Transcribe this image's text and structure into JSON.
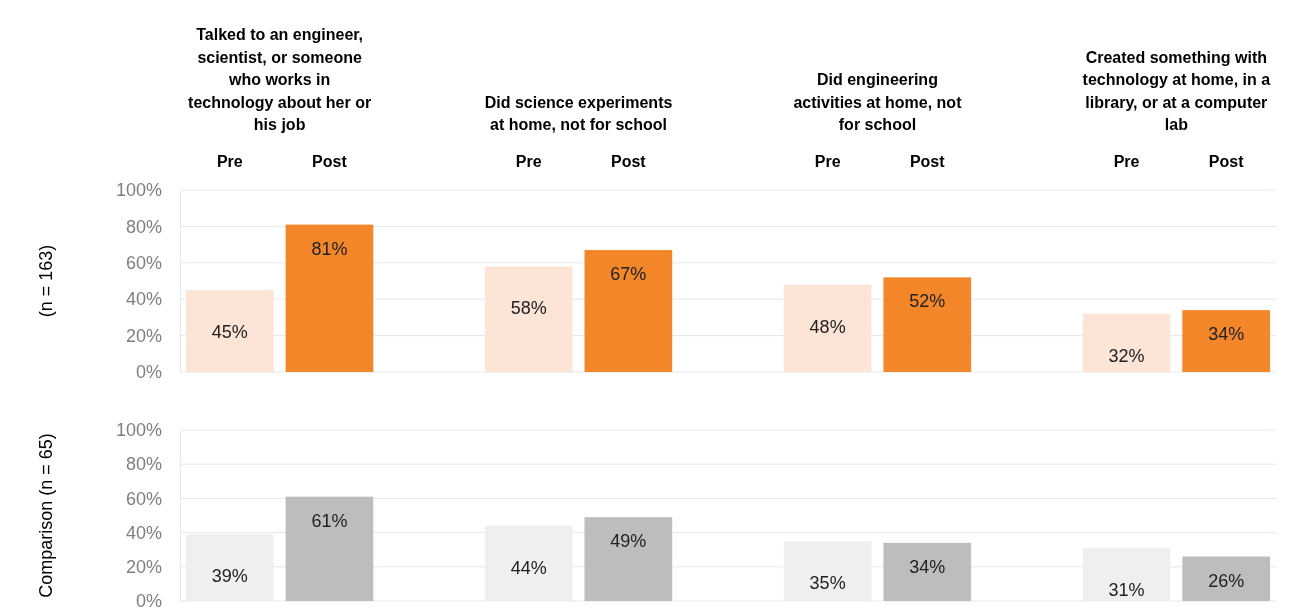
{
  "chart_data": [
    {
      "type": "bar",
      "ylabel": "(n = 163)",
      "categories": [
        "Pre",
        "Post",
        null,
        "Pre",
        "Post",
        null,
        "Pre",
        "Post",
        null,
        "Pre",
        "Post"
      ],
      "values": [
        45,
        81,
        null,
        58,
        67,
        null,
        48,
        52,
        null,
        32,
        34
      ],
      "colors": [
        "#fce4d6",
        "#f4862a",
        null,
        "#fce4d6",
        "#f4862a",
        null,
        "#fce4d6",
        "#f4862a",
        null,
        "#fce4d6",
        "#f4862a"
      ],
      "value_labels": [
        "45%",
        "81%",
        null,
        "58%",
        "67%",
        null,
        "48%",
        "52%",
        null,
        "32%",
        "34%"
      ],
      "annotations": [
        "Talked to an engineer, scientist, or someone who works in technology about her or his job",
        "Did science experiments at home, not for school",
        "Did engineering activities at home, not for school",
        "Created something with technology at home, in a library, or at a computer lab"
      ],
      "ylim": [
        0,
        100
      ],
      "yticks": [
        {
          "value": 0,
          "label": "0%"
        },
        {
          "value": 20,
          "label": "20%"
        },
        {
          "value": 40,
          "label": "40%"
        },
        {
          "value": 60,
          "label": "60%"
        },
        {
          "value": 80,
          "label": "80%"
        },
        {
          "value": 100,
          "label": "100%"
        }
      ],
      "grid": "y"
    },
    {
      "type": "bar",
      "ylabel": "Comparison (n = 65)",
      "categories": [
        null,
        null,
        null,
        null,
        null,
        null,
        null,
        null,
        null,
        null,
        null
      ],
      "values": [
        39,
        61,
        null,
        44,
        49,
        null,
        35,
        34,
        null,
        31,
        26
      ],
      "colors": [
        "#efefef",
        "#bdbdbd",
        null,
        "#efefef",
        "#bdbdbd",
        null,
        "#efefef",
        "#bdbdbd",
        null,
        "#efefef",
        "#bdbdbd"
      ],
      "value_labels": [
        "39%",
        "61%",
        null,
        "44%",
        "49%",
        null,
        "35%",
        "34%",
        null,
        "31%",
        "26%"
      ],
      "ylim": [
        0,
        100
      ],
      "yticks": [
        {
          "value": 0,
          "label": "0%"
        },
        {
          "value": 20,
          "label": "20%"
        },
        {
          "value": 40,
          "label": "40%"
        },
        {
          "value": 60,
          "label": "60%"
        },
        {
          "value": 80,
          "label": "80%"
        },
        {
          "value": 100,
          "label": "100%"
        }
      ],
      "grid": "y"
    }
  ]
}
